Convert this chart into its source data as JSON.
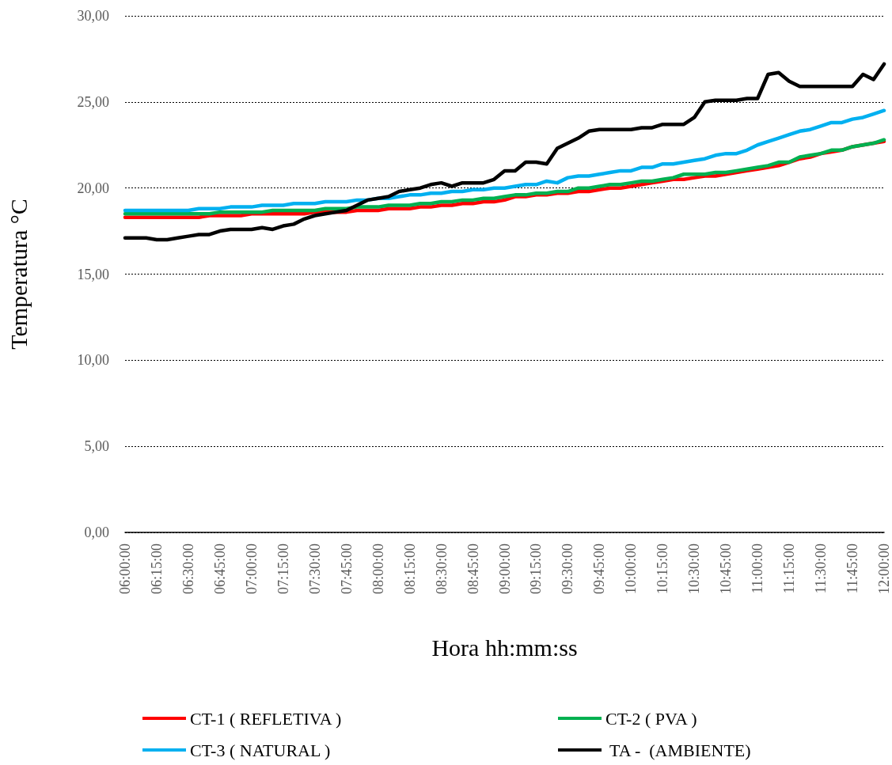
{
  "chart_data": {
    "type": "line",
    "xlabel": "Hora hh:mm:ss",
    "ylabel": "Temperatura °C",
    "categories": [
      "06:00:00",
      null,
      null,
      "06:15:00",
      null,
      null,
      "06:30:00",
      null,
      null,
      "06:45:00",
      null,
      null,
      "07:00:00",
      null,
      null,
      "07:15:00",
      null,
      null,
      "07:30:00",
      null,
      null,
      "07:45:00",
      null,
      null,
      "08:00:00",
      null,
      null,
      "08:15:00",
      null,
      null,
      "08:30:00",
      null,
      null,
      "08:45:00",
      null,
      null,
      "09:00:00",
      null,
      null,
      "09:15:00",
      null,
      null,
      "09:30:00",
      null,
      null,
      "09:45:00",
      null,
      null,
      "10:00:00",
      null,
      null,
      "10:15:00",
      null,
      null,
      "10:30:00",
      null,
      null,
      "10:45:00",
      null,
      null,
      "11:00:00",
      null,
      null,
      "11:15:00",
      null,
      null,
      "11:30:00",
      null,
      null,
      "11:45:00",
      null,
      null,
      "12:00:00"
    ],
    "series": [
      {
        "name": "CT-1 ( REFLETIVA )",
        "color": "#ff0000",
        "values": [
          18.3,
          18.3,
          18.3,
          18.3,
          18.3,
          18.3,
          18.3,
          18.3,
          18.4,
          18.4,
          18.4,
          18.4,
          18.5,
          18.5,
          18.5,
          18.5,
          18.5,
          18.5,
          18.6,
          18.6,
          18.6,
          18.6,
          18.7,
          18.7,
          18.7,
          18.8,
          18.8,
          18.8,
          18.9,
          18.9,
          19.0,
          19.0,
          19.1,
          19.1,
          19.2,
          19.2,
          19.3,
          19.5,
          19.5,
          19.6,
          19.6,
          19.7,
          19.7,
          19.8,
          19.8,
          19.9,
          20.0,
          20.0,
          20.1,
          20.2,
          20.3,
          20.4,
          20.5,
          20.5,
          20.6,
          20.7,
          20.7,
          20.8,
          20.9,
          21.0,
          21.1,
          21.2,
          21.3,
          21.5,
          21.7,
          21.8,
          22.0,
          22.1,
          22.2,
          22.4,
          22.5,
          22.6,
          22.7
        ]
      },
      {
        "name": "CT-2 ( PVA )",
        "color": "#00b050",
        "values": [
          18.5,
          18.5,
          18.5,
          18.5,
          18.5,
          18.5,
          18.5,
          18.5,
          18.5,
          18.6,
          18.6,
          18.6,
          18.6,
          18.6,
          18.7,
          18.7,
          18.7,
          18.7,
          18.7,
          18.8,
          18.8,
          18.8,
          18.9,
          18.9,
          18.9,
          19.0,
          19.0,
          19.0,
          19.1,
          19.1,
          19.2,
          19.2,
          19.3,
          19.3,
          19.4,
          19.4,
          19.5,
          19.6,
          19.6,
          19.7,
          19.7,
          19.8,
          19.8,
          20.0,
          20.0,
          20.1,
          20.2,
          20.2,
          20.3,
          20.4,
          20.4,
          20.5,
          20.6,
          20.8,
          20.8,
          20.8,
          20.9,
          20.9,
          21.0,
          21.1,
          21.2,
          21.3,
          21.5,
          21.5,
          21.8,
          21.9,
          22.0,
          22.2,
          22.2,
          22.4,
          22.5,
          22.6,
          22.8
        ]
      },
      {
        "name": "CT-3 ( NATURAL )",
        "color": "#00b0f0",
        "values": [
          18.7,
          18.7,
          18.7,
          18.7,
          18.7,
          18.7,
          18.7,
          18.8,
          18.8,
          18.8,
          18.9,
          18.9,
          18.9,
          19.0,
          19.0,
          19.0,
          19.1,
          19.1,
          19.1,
          19.2,
          19.2,
          19.2,
          19.3,
          19.3,
          19.4,
          19.4,
          19.5,
          19.6,
          19.6,
          19.7,
          19.7,
          19.8,
          19.8,
          19.9,
          19.9,
          20.0,
          20.0,
          20.1,
          20.2,
          20.2,
          20.4,
          20.3,
          20.6,
          20.7,
          20.7,
          20.8,
          20.9,
          21.0,
          21.0,
          21.2,
          21.2,
          21.4,
          21.4,
          21.5,
          21.6,
          21.7,
          21.9,
          22.0,
          22.0,
          22.2,
          22.5,
          22.7,
          22.9,
          23.1,
          23.3,
          23.4,
          23.6,
          23.8,
          23.8,
          24.0,
          24.1,
          24.3,
          24.5
        ]
      },
      {
        "name": " TA -  (AMBIENTE)",
        "color": "#000000",
        "values": [
          17.1,
          17.1,
          17.1,
          17.0,
          17.0,
          17.1,
          17.2,
          17.3,
          17.3,
          17.5,
          17.6,
          17.6,
          17.6,
          17.7,
          17.6,
          17.8,
          17.9,
          18.2,
          18.4,
          18.5,
          18.6,
          18.7,
          19.0,
          19.3,
          19.4,
          19.5,
          19.8,
          19.9,
          20.0,
          20.2,
          20.3,
          20.1,
          20.3,
          20.3,
          20.3,
          20.5,
          21.0,
          21.0,
          21.5,
          21.5,
          21.4,
          22.3,
          22.6,
          22.9,
          23.3,
          23.4,
          23.4,
          23.4,
          23.4,
          23.5,
          23.5,
          23.7,
          23.7,
          23.7,
          24.1,
          25.0,
          25.1,
          25.1,
          25.1,
          25.2,
          25.2,
          26.6,
          26.7,
          26.2,
          25.9,
          25.9,
          25.9,
          25.9,
          25.9,
          25.9,
          26.6,
          26.3,
          27.2
        ]
      }
    ],
    "ylim": [
      0,
      30
    ],
    "yticks": [
      {
        "value": 0,
        "label": "0,00"
      },
      {
        "value": 5,
        "label": "5,00"
      },
      {
        "value": 10,
        "label": "10,00"
      },
      {
        "value": 15,
        "label": "15,00"
      },
      {
        "value": 20,
        "label": "20,00"
      },
      {
        "value": 25,
        "label": "25,00"
      },
      {
        "value": 30,
        "label": "30,00"
      }
    ],
    "grid": "y",
    "legend": "bottom",
    "marker": "none",
    "line_style": "solid"
  }
}
